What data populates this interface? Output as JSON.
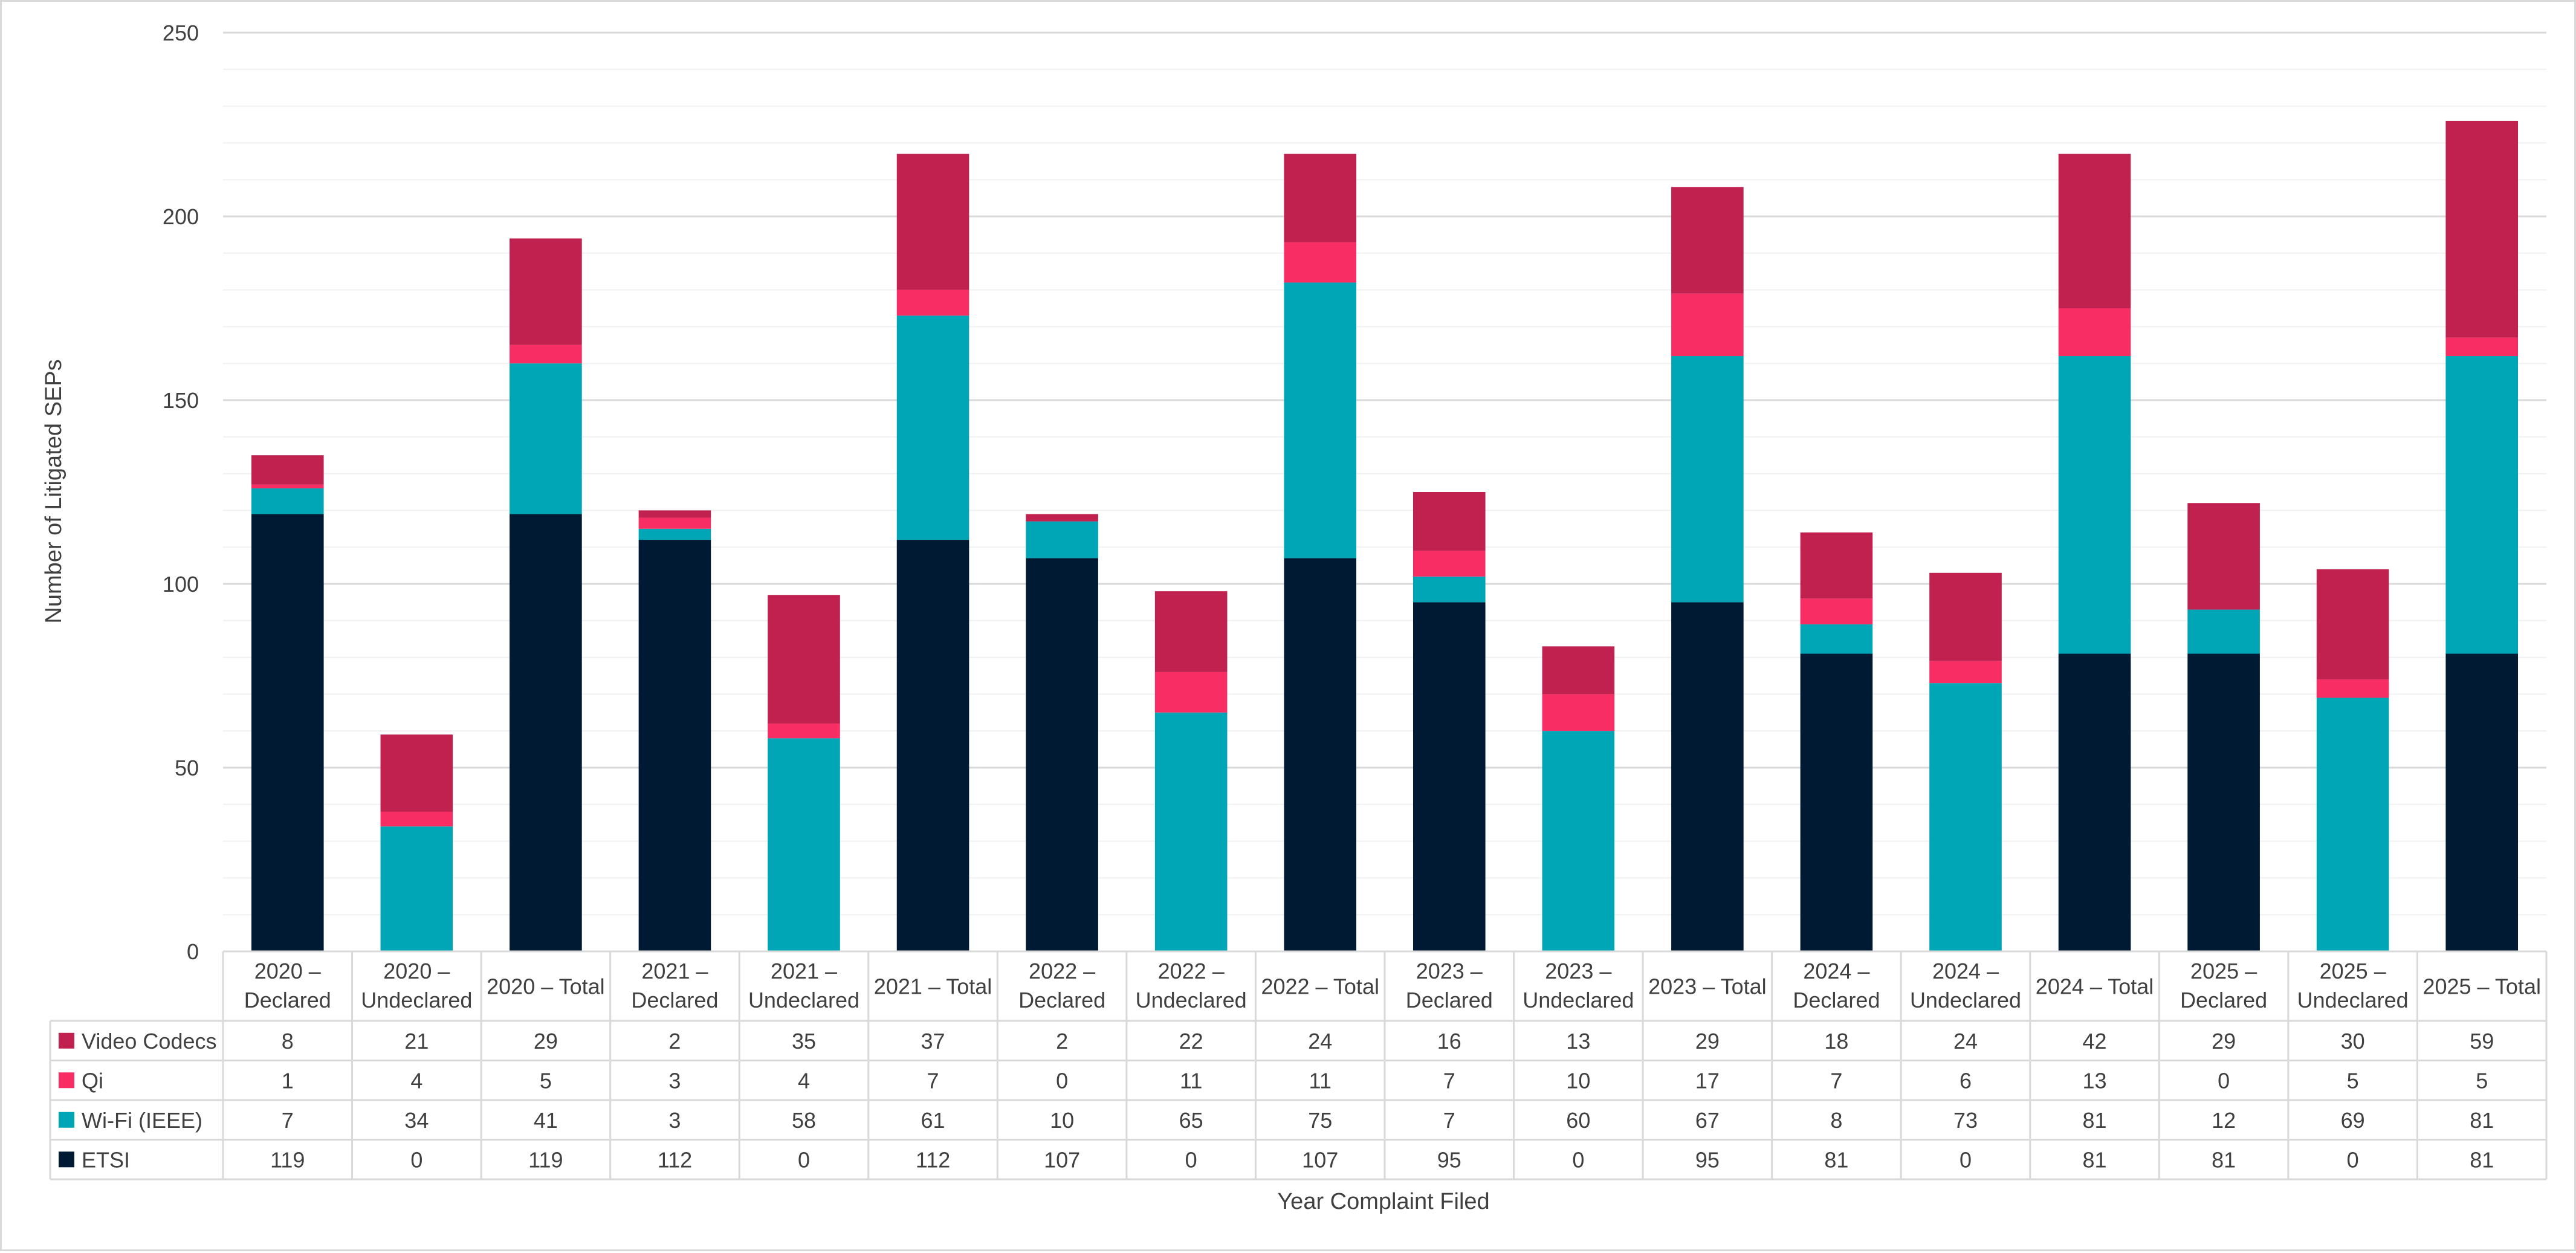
{
  "chart_data": {
    "type": "bar",
    "stacked": true,
    "title": "",
    "xlabel": "Year Complaint Filed",
    "ylabel": "Number of Litigated SEPs",
    "ylim": [
      0,
      250
    ],
    "yticks": [
      0,
      50,
      100,
      150,
      200,
      250
    ],
    "grid": true,
    "legend": "data-table",
    "categories": [
      [
        "2020 –",
        "Declared"
      ],
      [
        "2020 –",
        "Undeclared"
      ],
      [
        "2020 – Total"
      ],
      [
        "2021 –",
        "Declared"
      ],
      [
        "2021 –",
        "Undeclared"
      ],
      [
        "2021 – Total"
      ],
      [
        "2022 –",
        "Declared"
      ],
      [
        "2022 –",
        "Undeclared"
      ],
      [
        "2022 – Total"
      ],
      [
        "2023 –",
        "Declared"
      ],
      [
        "2023 –",
        "Undeclared"
      ],
      [
        "2023 – Total"
      ],
      [
        "2024 –",
        "Declared"
      ],
      [
        "2024 –",
        "Undeclared"
      ],
      [
        "2024 – Total"
      ],
      [
        "2025 –",
        "Declared"
      ],
      [
        "2025 –",
        "Undeclared"
      ],
      [
        "2025 – Total"
      ]
    ],
    "series": [
      {
        "name": "ETSI",
        "color": "#001a33",
        "values": [
          119,
          0,
          119,
          112,
          0,
          112,
          107,
          0,
          107,
          95,
          0,
          95,
          81,
          0,
          81,
          81,
          0,
          81
        ]
      },
      {
        "name": "Wi-Fi (IEEE)",
        "color": "#00a6b5",
        "values": [
          7,
          34,
          41,
          3,
          58,
          61,
          10,
          65,
          75,
          7,
          60,
          67,
          8,
          73,
          81,
          12,
          69,
          81
        ]
      },
      {
        "name": "Qi",
        "color": "#f72d64",
        "values": [
          1,
          4,
          5,
          3,
          4,
          7,
          0,
          11,
          11,
          7,
          10,
          17,
          7,
          6,
          13,
          0,
          5,
          5
        ]
      },
      {
        "name": "Video Codecs",
        "color": "#c0214e",
        "values": [
          8,
          21,
          29,
          2,
          35,
          37,
          2,
          22,
          24,
          16,
          13,
          29,
          18,
          24,
          42,
          29,
          30,
          59
        ]
      }
    ]
  }
}
